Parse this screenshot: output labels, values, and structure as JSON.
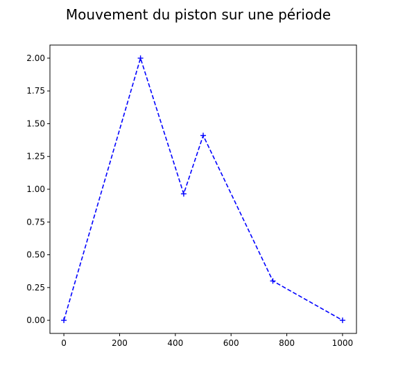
{
  "chart_data": {
    "type": "line",
    "title": "Mouvement du piston sur une période",
    "xlabel": "",
    "ylabel": "",
    "xlim": [
      -50,
      1050
    ],
    "ylim": [
      -0.1,
      2.1
    ],
    "xticks": [
      0,
      200,
      400,
      600,
      800,
      1000
    ],
    "xtick_labels": [
      "0",
      "200",
      "400",
      "600",
      "800",
      "1000"
    ],
    "yticks": [
      0,
      0.25,
      0.5,
      0.75,
      1.0,
      1.25,
      1.5,
      1.75,
      2.0
    ],
    "ytick_labels": [
      "0.00",
      "0.25",
      "0.50",
      "0.75",
      "1.00",
      "1.25",
      "1.50",
      "1.75",
      "2.00"
    ],
    "grid": false,
    "series": [
      {
        "color": "#0000ff",
        "line_style": "dashed",
        "marker": "plus",
        "x": [
          0,
          275,
          430,
          500,
          750,
          1000
        ],
        "y": [
          0,
          2.0,
          0.965,
          1.41,
          0.3,
          0
        ]
      }
    ]
  }
}
